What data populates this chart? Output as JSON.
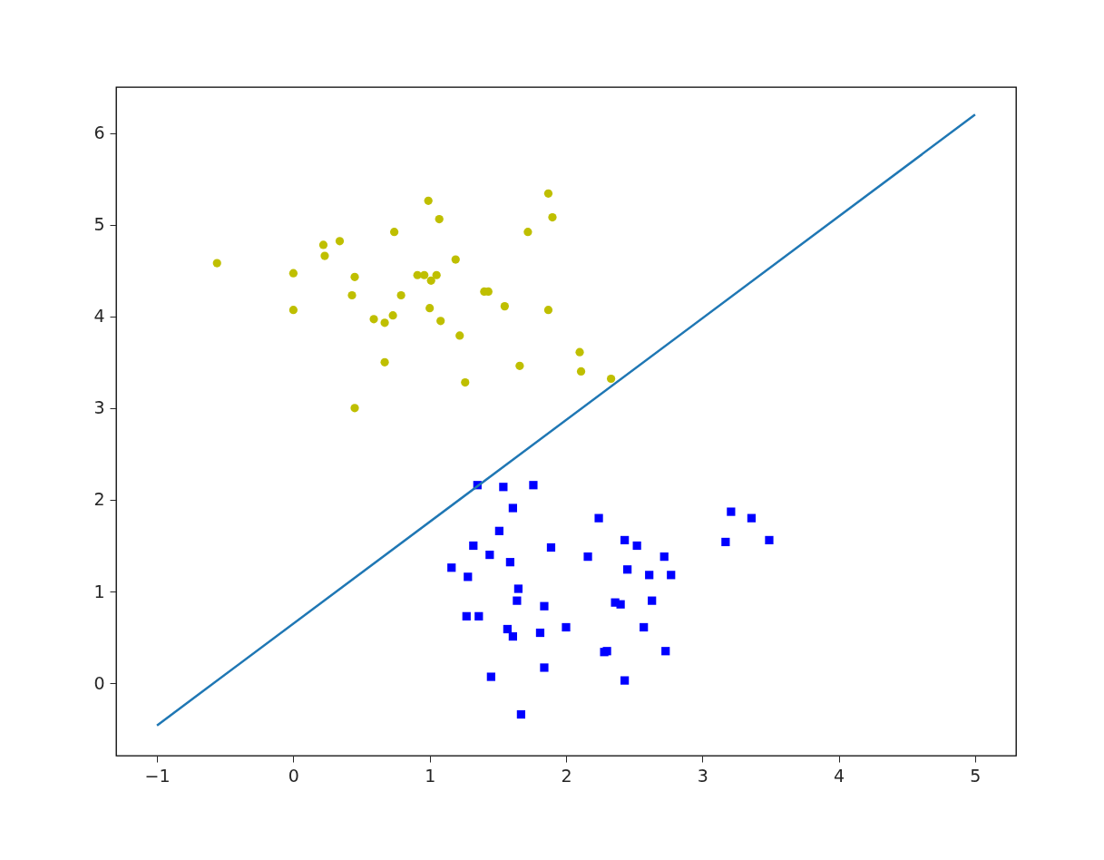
{
  "chart_data": {
    "type": "scatter",
    "xlim": [
      -1.3,
      5.3
    ],
    "ylim": [
      -0.79,
      6.5
    ],
    "xticks": [
      -1,
      0,
      1,
      2,
      3,
      4,
      5
    ],
    "yticks": [
      0,
      1,
      2,
      3,
      4,
      5,
      6
    ],
    "grid": false,
    "series": [
      {
        "marker": "circle",
        "color": "#bfbf00",
        "x": [
          -0.56,
          0.0,
          0.0,
          0.22,
          0.23,
          0.34,
          0.45,
          0.43,
          0.59,
          0.67,
          0.73,
          0.74,
          0.79,
          0.67,
          0.45,
          0.91,
          0.96,
          0.99,
          1.01,
          1.05,
          1.0,
          1.07,
          1.08,
          1.19,
          1.22,
          1.26,
          1.4,
          1.43,
          1.55,
          1.66,
          1.72,
          1.87,
          1.9,
          1.87,
          2.1,
          2.11,
          2.33
        ],
        "values": [
          4.58,
          4.47,
          4.07,
          4.78,
          4.66,
          4.82,
          4.43,
          4.23,
          3.97,
          3.93,
          4.01,
          4.92,
          4.23,
          3.5,
          3.0,
          4.45,
          4.45,
          5.26,
          4.39,
          4.45,
          4.09,
          5.06,
          3.95,
          4.62,
          3.79,
          3.28,
          4.27,
          4.27,
          4.11,
          3.46,
          4.92,
          5.34,
          5.08,
          4.07,
          3.61,
          3.4,
          3.32
        ]
      },
      {
        "marker": "square",
        "color": "#0000ff",
        "x": [
          1.35,
          1.54,
          1.76,
          1.61,
          2.24,
          1.51,
          1.32,
          1.44,
          1.59,
          1.89,
          2.16,
          2.43,
          2.52,
          2.72,
          2.45,
          2.61,
          2.77,
          1.16,
          1.28,
          1.65,
          1.64,
          1.84,
          2.36,
          2.4,
          2.63,
          1.27,
          1.36,
          1.57,
          1.61,
          1.81,
          2.0,
          2.57,
          2.28,
          2.3,
          2.73,
          1.45,
          1.84,
          2.43,
          1.67,
          3.21,
          3.36,
          3.17,
          3.49
        ],
        "values": [
          2.16,
          2.14,
          2.16,
          1.91,
          1.8,
          1.66,
          1.5,
          1.4,
          1.32,
          1.48,
          1.38,
          1.56,
          1.5,
          1.38,
          1.24,
          1.18,
          1.18,
          1.26,
          1.16,
          1.03,
          0.9,
          0.84,
          0.88,
          0.86,
          0.9,
          0.73,
          0.73,
          0.59,
          0.51,
          0.55,
          0.61,
          0.61,
          0.34,
          0.35,
          0.35,
          0.07,
          0.17,
          0.03,
          -0.34,
          1.87,
          1.8,
          1.54,
          1.56
        ]
      },
      {
        "type": "line",
        "line_style": "solid",
        "color": "#1f77b4",
        "x": [
          -1,
          5
        ],
        "values": [
          -0.46,
          6.2
        ]
      }
    ]
  }
}
